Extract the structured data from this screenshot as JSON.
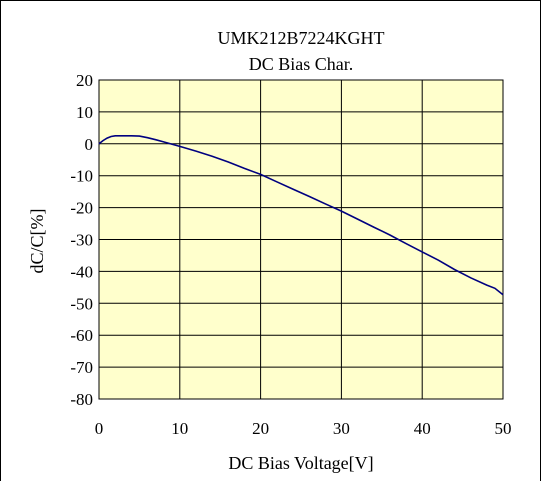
{
  "chart_data": {
    "type": "line",
    "title": "UMK212B7224KGHT",
    "subtitle": "DC Bias Char.",
    "xlabel": "DC Bias Voltage[V]",
    "ylabel": "dC/C[%]",
    "xlim": [
      0,
      50
    ],
    "ylim": [
      -80,
      20
    ],
    "xticks": [
      0,
      10,
      20,
      30,
      40,
      50
    ],
    "yticks": [
      20,
      10,
      0,
      -10,
      -20,
      -30,
      -40,
      -50,
      -60,
      -70,
      -80
    ],
    "grid": true,
    "plot_background": "#FFFFCC",
    "series": [
      {
        "color": "#000080",
        "x": [
          0,
          0.5,
          1,
          1.5,
          2,
          3,
          4,
          5,
          6,
          7,
          8,
          9,
          10,
          12,
          14,
          16,
          18,
          20,
          22,
          24,
          26,
          28,
          30,
          32,
          34,
          36,
          38,
          40,
          42,
          44,
          46,
          48,
          49,
          50
        ],
        "y": [
          0,
          1,
          1.8,
          2.3,
          2.5,
          2.5,
          2.5,
          2.4,
          1.9,
          1.3,
          0.6,
          -0.1,
          -0.8,
          -2.3,
          -3.9,
          -5.7,
          -7.7,
          -9.6,
          -11.9,
          -14.2,
          -16.5,
          -18.8,
          -21.1,
          -23.6,
          -26.1,
          -28.6,
          -31.3,
          -33.9,
          -36.5,
          -39.4,
          -42.0,
          -44.3,
          -45.3,
          -47.3
        ]
      }
    ]
  }
}
